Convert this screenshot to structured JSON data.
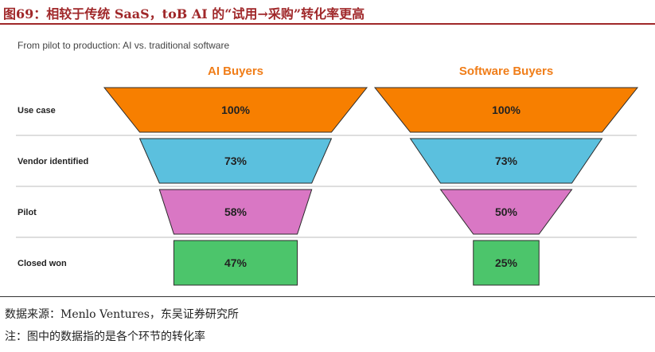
{
  "figure": {
    "title": "图69：相较于传统 SaaS，toB AI 的“试用→采购”转化率更高",
    "source": "数据来源：Menlo Ventures，东吴证券研究所",
    "note": "注：图中的数据指的是各个环节的转化率"
  },
  "chart_data": {
    "type": "funnel",
    "subtitle": "From pilot to production: AI vs. traditional software",
    "stages": [
      "Use case",
      "Vendor identified",
      "Pilot",
      "Closed won"
    ],
    "series": [
      {
        "name": "AI Buyers",
        "values": [
          100,
          73,
          58,
          47
        ],
        "labels": [
          "100%",
          "73%",
          "58%",
          "47%"
        ]
      },
      {
        "name": "Software Buyers",
        "values": [
          100,
          73,
          50,
          25
        ],
        "labels": [
          "100%",
          "73%",
          "50%",
          "25%"
        ]
      }
    ],
    "stage_colors": [
      "#f77f00",
      "#5bc0de",
      "#d977c4",
      "#4cc56b"
    ],
    "header_color": "#f07d18"
  }
}
